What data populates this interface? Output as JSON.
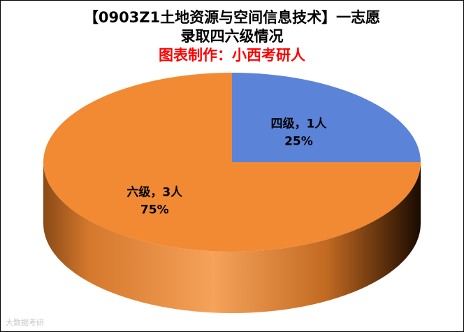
{
  "chart_data": {
    "type": "pie",
    "title_lines": [
      "【0903Z1土地资源与空间信息技术】一志愿",
      "录取四六级情况"
    ],
    "subtitle": "图表制作：小西考研人",
    "slices": [
      {
        "name": "四级",
        "count_label": "四级，1人",
        "value": 1,
        "percent_label": "25%",
        "percent": 25,
        "color": "#5b83d8"
      },
      {
        "name": "六级",
        "count_label": "六级，3人",
        "value": 3,
        "percent_label": "75%",
        "percent": 75,
        "color": "#f28a33"
      }
    ],
    "style": "3d",
    "legend": "none"
  },
  "watermark": "大数据考研"
}
